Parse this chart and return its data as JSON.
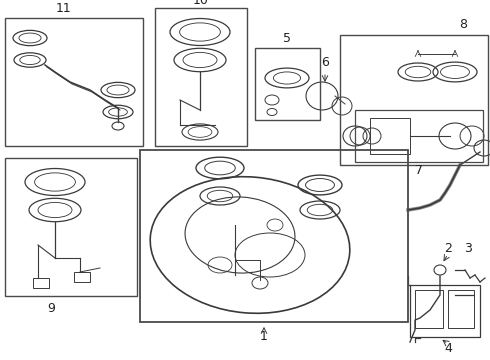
{
  "bg_color": "#ffffff",
  "lc": "#3a3a3a",
  "bc": "#4a4a4a",
  "figw": 4.9,
  "figh": 3.6,
  "dpi": 100
}
